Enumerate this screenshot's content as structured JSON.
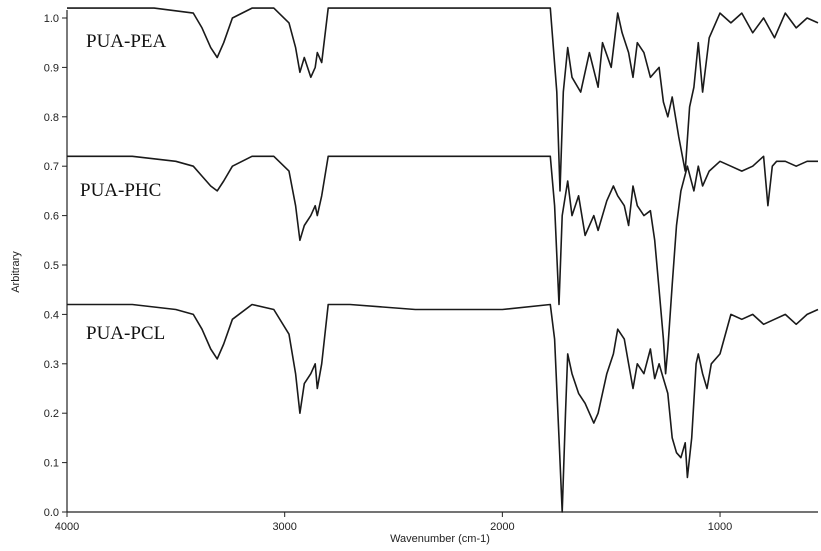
{
  "chart_data": {
    "type": "line",
    "title": "",
    "xlabel": "Wavenumber (cm-1)",
    "ylabel": "Arbitrary",
    "xlim": [
      4000,
      550
    ],
    "ylim": [
      0,
      1.05
    ],
    "x_ticks": [
      4000,
      3000,
      2000,
      1000
    ],
    "x_tick_labels": [
      "4000",
      "3000",
      "2000",
      "1000"
    ],
    "y_ticks": [
      0,
      0.1,
      0.2,
      0.3,
      0.4,
      0.5,
      0.6,
      0.7,
      0.8,
      0.9,
      1.0
    ],
    "y_tick_labels": [
      "0.0",
      "0.1",
      "0.2",
      "0.3",
      "0.4",
      "0.5",
      "0.6",
      "0.7",
      "0.8",
      "0.9",
      "1.0"
    ],
    "x_reversed": true,
    "grid": false,
    "legend": "inline labels, left",
    "series": [
      {
        "name": "PUA-PEA",
        "x": [
          4000,
          3600,
          3420,
          3380,
          3340,
          3310,
          3280,
          3240,
          3150,
          3050,
          2980,
          2950,
          2930,
          2910,
          2880,
          2860,
          2850,
          2830,
          2800,
          2700,
          2400,
          2000,
          1780,
          1750,
          1735,
          1720,
          1700,
          1680,
          1640,
          1600,
          1560,
          1540,
          1500,
          1470,
          1450,
          1420,
          1400,
          1380,
          1350,
          1320,
          1280,
          1260,
          1240,
          1220,
          1190,
          1160,
          1140,
          1120,
          1100,
          1080,
          1050,
          1000,
          950,
          900,
          850,
          800,
          750,
          700,
          650,
          600,
          550
        ],
        "y": [
          1.02,
          1.02,
          1.01,
          0.98,
          0.94,
          0.92,
          0.95,
          1.0,
          1.02,
          1.02,
          0.99,
          0.94,
          0.89,
          0.92,
          0.88,
          0.9,
          0.93,
          0.91,
          1.02,
          1.02,
          1.02,
          1.02,
          1.02,
          0.85,
          0.65,
          0.85,
          0.94,
          0.88,
          0.85,
          0.93,
          0.86,
          0.95,
          0.9,
          1.01,
          0.97,
          0.93,
          0.88,
          0.95,
          0.93,
          0.88,
          0.9,
          0.83,
          0.8,
          0.84,
          0.76,
          0.69,
          0.82,
          0.86,
          0.95,
          0.85,
          0.96,
          1.01,
          0.99,
          1.01,
          0.97,
          1.0,
          0.96,
          1.01,
          0.98,
          1.0,
          0.99
        ]
      },
      {
        "name": "PUA-PHC",
        "x": [
          4000,
          3700,
          3500,
          3420,
          3380,
          3340,
          3310,
          3280,
          3240,
          3150,
          3050,
          2980,
          2950,
          2930,
          2910,
          2880,
          2860,
          2850,
          2830,
          2800,
          2700,
          2400,
          2000,
          1780,
          1760,
          1740,
          1725,
          1700,
          1680,
          1650,
          1620,
          1580,
          1560,
          1520,
          1490,
          1470,
          1440,
          1420,
          1400,
          1380,
          1350,
          1320,
          1300,
          1280,
          1260,
          1250,
          1240,
          1220,
          1200,
          1180,
          1150,
          1120,
          1100,
          1080,
          1050,
          1000,
          950,
          900,
          850,
          800,
          780,
          760,
          740,
          700,
          650,
          600,
          550
        ],
        "y": [
          0.72,
          0.72,
          0.71,
          0.7,
          0.68,
          0.66,
          0.65,
          0.67,
          0.7,
          0.72,
          0.72,
          0.69,
          0.62,
          0.55,
          0.58,
          0.6,
          0.62,
          0.6,
          0.64,
          0.72,
          0.72,
          0.72,
          0.72,
          0.72,
          0.62,
          0.42,
          0.6,
          0.67,
          0.6,
          0.64,
          0.56,
          0.6,
          0.57,
          0.63,
          0.66,
          0.64,
          0.62,
          0.58,
          0.66,
          0.62,
          0.6,
          0.61,
          0.55,
          0.45,
          0.35,
          0.28,
          0.33,
          0.46,
          0.58,
          0.65,
          0.7,
          0.65,
          0.7,
          0.66,
          0.69,
          0.71,
          0.7,
          0.69,
          0.7,
          0.72,
          0.62,
          0.7,
          0.71,
          0.71,
          0.7,
          0.71,
          0.71
        ]
      },
      {
        "name": "PUA-PCL",
        "x": [
          4000,
          3700,
          3500,
          3420,
          3380,
          3340,
          3310,
          3280,
          3240,
          3150,
          3050,
          2980,
          2950,
          2930,
          2910,
          2880,
          2860,
          2850,
          2830,
          2800,
          2700,
          2400,
          2000,
          1780,
          1760,
          1740,
          1725,
          1710,
          1700,
          1680,
          1650,
          1620,
          1580,
          1560,
          1520,
          1490,
          1470,
          1440,
          1420,
          1400,
          1380,
          1350,
          1320,
          1300,
          1280,
          1260,
          1240,
          1220,
          1200,
          1180,
          1160,
          1150,
          1130,
          1110,
          1100,
          1080,
          1060,
          1040,
          1000,
          950,
          900,
          850,
          800,
          750,
          700,
          650,
          600,
          550
        ],
        "y": [
          0.42,
          0.42,
          0.41,
          0.4,
          0.37,
          0.33,
          0.31,
          0.34,
          0.39,
          0.42,
          0.41,
          0.36,
          0.28,
          0.2,
          0.26,
          0.28,
          0.3,
          0.25,
          0.3,
          0.42,
          0.42,
          0.41,
          0.41,
          0.42,
          0.35,
          0.15,
          0.0,
          0.2,
          0.32,
          0.28,
          0.24,
          0.22,
          0.18,
          0.2,
          0.28,
          0.32,
          0.37,
          0.35,
          0.3,
          0.25,
          0.3,
          0.28,
          0.33,
          0.27,
          0.3,
          0.27,
          0.24,
          0.15,
          0.12,
          0.11,
          0.14,
          0.07,
          0.15,
          0.3,
          0.32,
          0.28,
          0.25,
          0.3,
          0.32,
          0.4,
          0.39,
          0.4,
          0.38,
          0.39,
          0.4,
          0.38,
          0.4,
          0.41
        ]
      }
    ]
  }
}
